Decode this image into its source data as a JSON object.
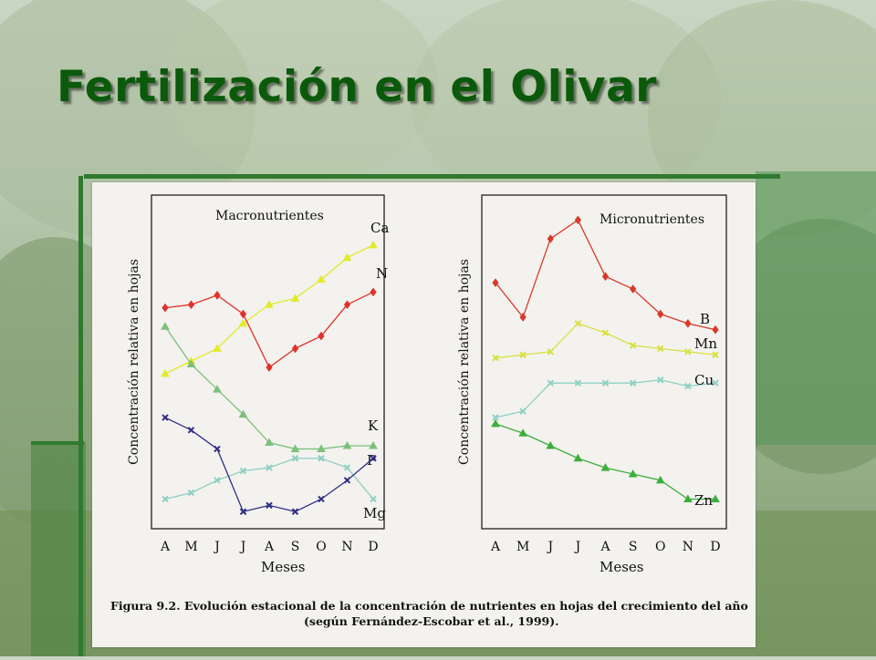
{
  "slide": {
    "title": "Fertilización en el Olivar"
  },
  "figure": {
    "caption_label": "Figura 9.2.",
    "caption_line1": "Evolución estacional de la concentración de nutrientes en hojas del crecimiento del año",
    "caption_line2": "(según Fernández-Escobar et al., 1999)."
  },
  "chart_data": [
    {
      "type": "line",
      "title": "Macronutrientes",
      "xlabel": "Meses",
      "ylabel": "Concentración relativa en hojas",
      "categories": [
        "A",
        "M",
        "J",
        "J",
        "A",
        "S",
        "O",
        "N",
        "D"
      ],
      "ylim": [
        0,
        100
      ],
      "grid": false,
      "series": [
        {
          "name": "Ca",
          "color": "#e2ea2a",
          "marker": "triangle",
          "values": [
            48,
            52,
            56,
            64,
            70,
            72,
            78,
            85,
            89
          ]
        },
        {
          "name": "N",
          "color": "#e0322a",
          "marker": "diamond",
          "values": [
            69,
            70,
            73,
            67,
            50,
            56,
            60,
            70,
            74
          ]
        },
        {
          "name": "K",
          "color": "#7cc07c",
          "marker": "triangle",
          "values": [
            63,
            51,
            43,
            35,
            26,
            24,
            24,
            25,
            25
          ]
        },
        {
          "name": "P",
          "color": "#8ecfc2",
          "marker": "cross",
          "values": [
            8,
            10,
            14,
            17,
            18,
            21,
            21,
            18,
            8
          ]
        },
        {
          "name": "Mg",
          "color": "#2e2d86",
          "marker": "cross",
          "values": [
            34,
            30,
            24,
            4,
            6,
            4,
            8,
            14,
            21
          ]
        }
      ]
    },
    {
      "type": "line",
      "title": "Micronutrientes",
      "xlabel": "Meses",
      "ylabel": "Concentración relativa en hojas",
      "categories": [
        "A",
        "M",
        "J",
        "J",
        "A",
        "S",
        "O",
        "N",
        "D"
      ],
      "ylim": [
        0,
        100
      ],
      "grid": false,
      "series": [
        {
          "name": "B",
          "color": "#d83a2a",
          "marker": "diamond",
          "values": [
            77,
            66,
            91,
            97,
            79,
            75,
            67,
            64,
            62
          ]
        },
        {
          "name": "Mn",
          "color": "#d8e040",
          "marker": "cross",
          "values": [
            53,
            54,
            55,
            64,
            61,
            57,
            56,
            55,
            54
          ]
        },
        {
          "name": "Cu",
          "color": "#8ed1c4",
          "marker": "cross",
          "values": [
            34,
            36,
            45,
            45,
            45,
            45,
            46,
            44,
            45
          ]
        },
        {
          "name": "Zn",
          "color": "#3cae3c",
          "marker": "triangle",
          "values": [
            32,
            29,
            25,
            21,
            18,
            16,
            14,
            8,
            8
          ]
        }
      ]
    }
  ]
}
